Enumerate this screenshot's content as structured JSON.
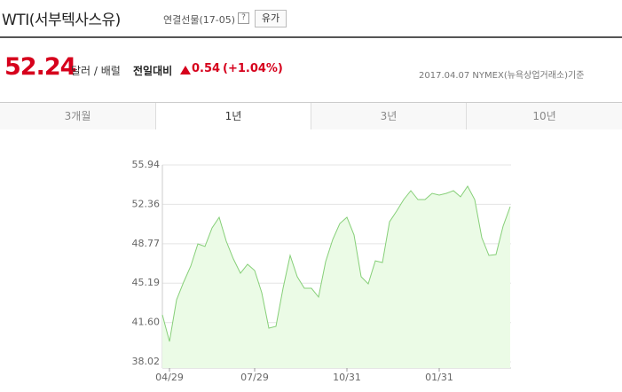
{
  "header": {
    "title": "WTI(서부텍사스유)",
    "subtitle": "연결선물(17-05)",
    "help": "?",
    "button": "유가"
  },
  "quote": {
    "price": "52.24",
    "unit": "달러 / 배럴",
    "change_label": "전일대비",
    "change": "0.54",
    "change_pct": "(+1.04%)",
    "source": "2017.04.07 NYMEX(뉴욕상업거래소)기준"
  },
  "tabs": [
    "3개월",
    "1년",
    "3년",
    "10년"
  ],
  "chart_data": {
    "type": "area",
    "color": "#86cf78",
    "fill": "#ebfbe6",
    "categories": [
      null,
      "04/29",
      null,
      null,
      null,
      null,
      null,
      null,
      null,
      null,
      null,
      null,
      null,
      "07/29",
      null,
      null,
      null,
      null,
      null,
      null,
      null,
      null,
      null,
      null,
      null,
      null,
      "10/31",
      null,
      null,
      null,
      null,
      null,
      null,
      null,
      null,
      null,
      null,
      null,
      null,
      "01/31",
      null,
      null,
      null,
      null,
      null,
      null,
      null,
      null,
      null,
      null
    ],
    "values": [
      42.3,
      39.88,
      43.67,
      45.29,
      46.74,
      48.76,
      48.52,
      50.21,
      51.18,
      49.0,
      47.39,
      46.09,
      46.9,
      46.34,
      44.32,
      41.09,
      41.25,
      44.72,
      47.71,
      45.77,
      44.72,
      44.72,
      43.92,
      47.14,
      49.16,
      50.61,
      51.18,
      49.57,
      45.77,
      45.13,
      47.22,
      47.06,
      50.77,
      51.74,
      52.79,
      53.6,
      52.79,
      52.79,
      53.36,
      53.2,
      53.36,
      53.6,
      53.04,
      54.0,
      52.79,
      49.32,
      47.71,
      47.79,
      50.37,
      52.15
    ],
    "ylim": [
      37.46,
      55.94
    ],
    "yticks": [
      38.02,
      {
        "value": 41.6,
        "label": "41.60"
      },
      45.19,
      48.77,
      52.36,
      55.94
    ],
    "grid": true
  }
}
